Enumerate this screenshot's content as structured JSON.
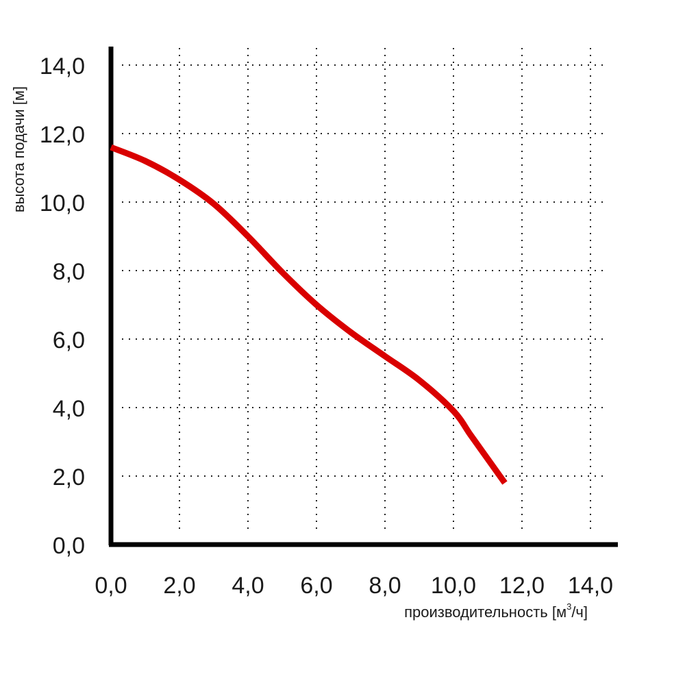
{
  "chart_data": {
    "type": "line",
    "title": "",
    "xlabel": "производительность [м",
    "xlabel_sup": "3",
    "xlabel_end": "/ч]",
    "ylabel": "высота подачи [м]",
    "xlim": [
      0,
      14
    ],
    "ylim": [
      0,
      14
    ],
    "x_ticks": [
      "0,0",
      "2,0",
      "4,0",
      "6,0",
      "8,0",
      "10,0",
      "12,0",
      "14,0"
    ],
    "y_ticks": [
      "0,0",
      "2,0",
      "4,0",
      "6,0",
      "8,0",
      "10,0",
      "12,0",
      "14,0"
    ],
    "grid": true,
    "series": [
      {
        "color": "#d90000",
        "x": [
          0,
          1,
          2,
          3,
          4,
          5,
          6,
          7,
          8,
          9,
          10,
          10.5,
          11,
          11.5
        ],
        "y": [
          11.6,
          11.2,
          10.65,
          9.95,
          9.0,
          7.95,
          7.0,
          6.2,
          5.5,
          4.8,
          3.9,
          3.2,
          2.5,
          1.8
        ]
      }
    ]
  }
}
